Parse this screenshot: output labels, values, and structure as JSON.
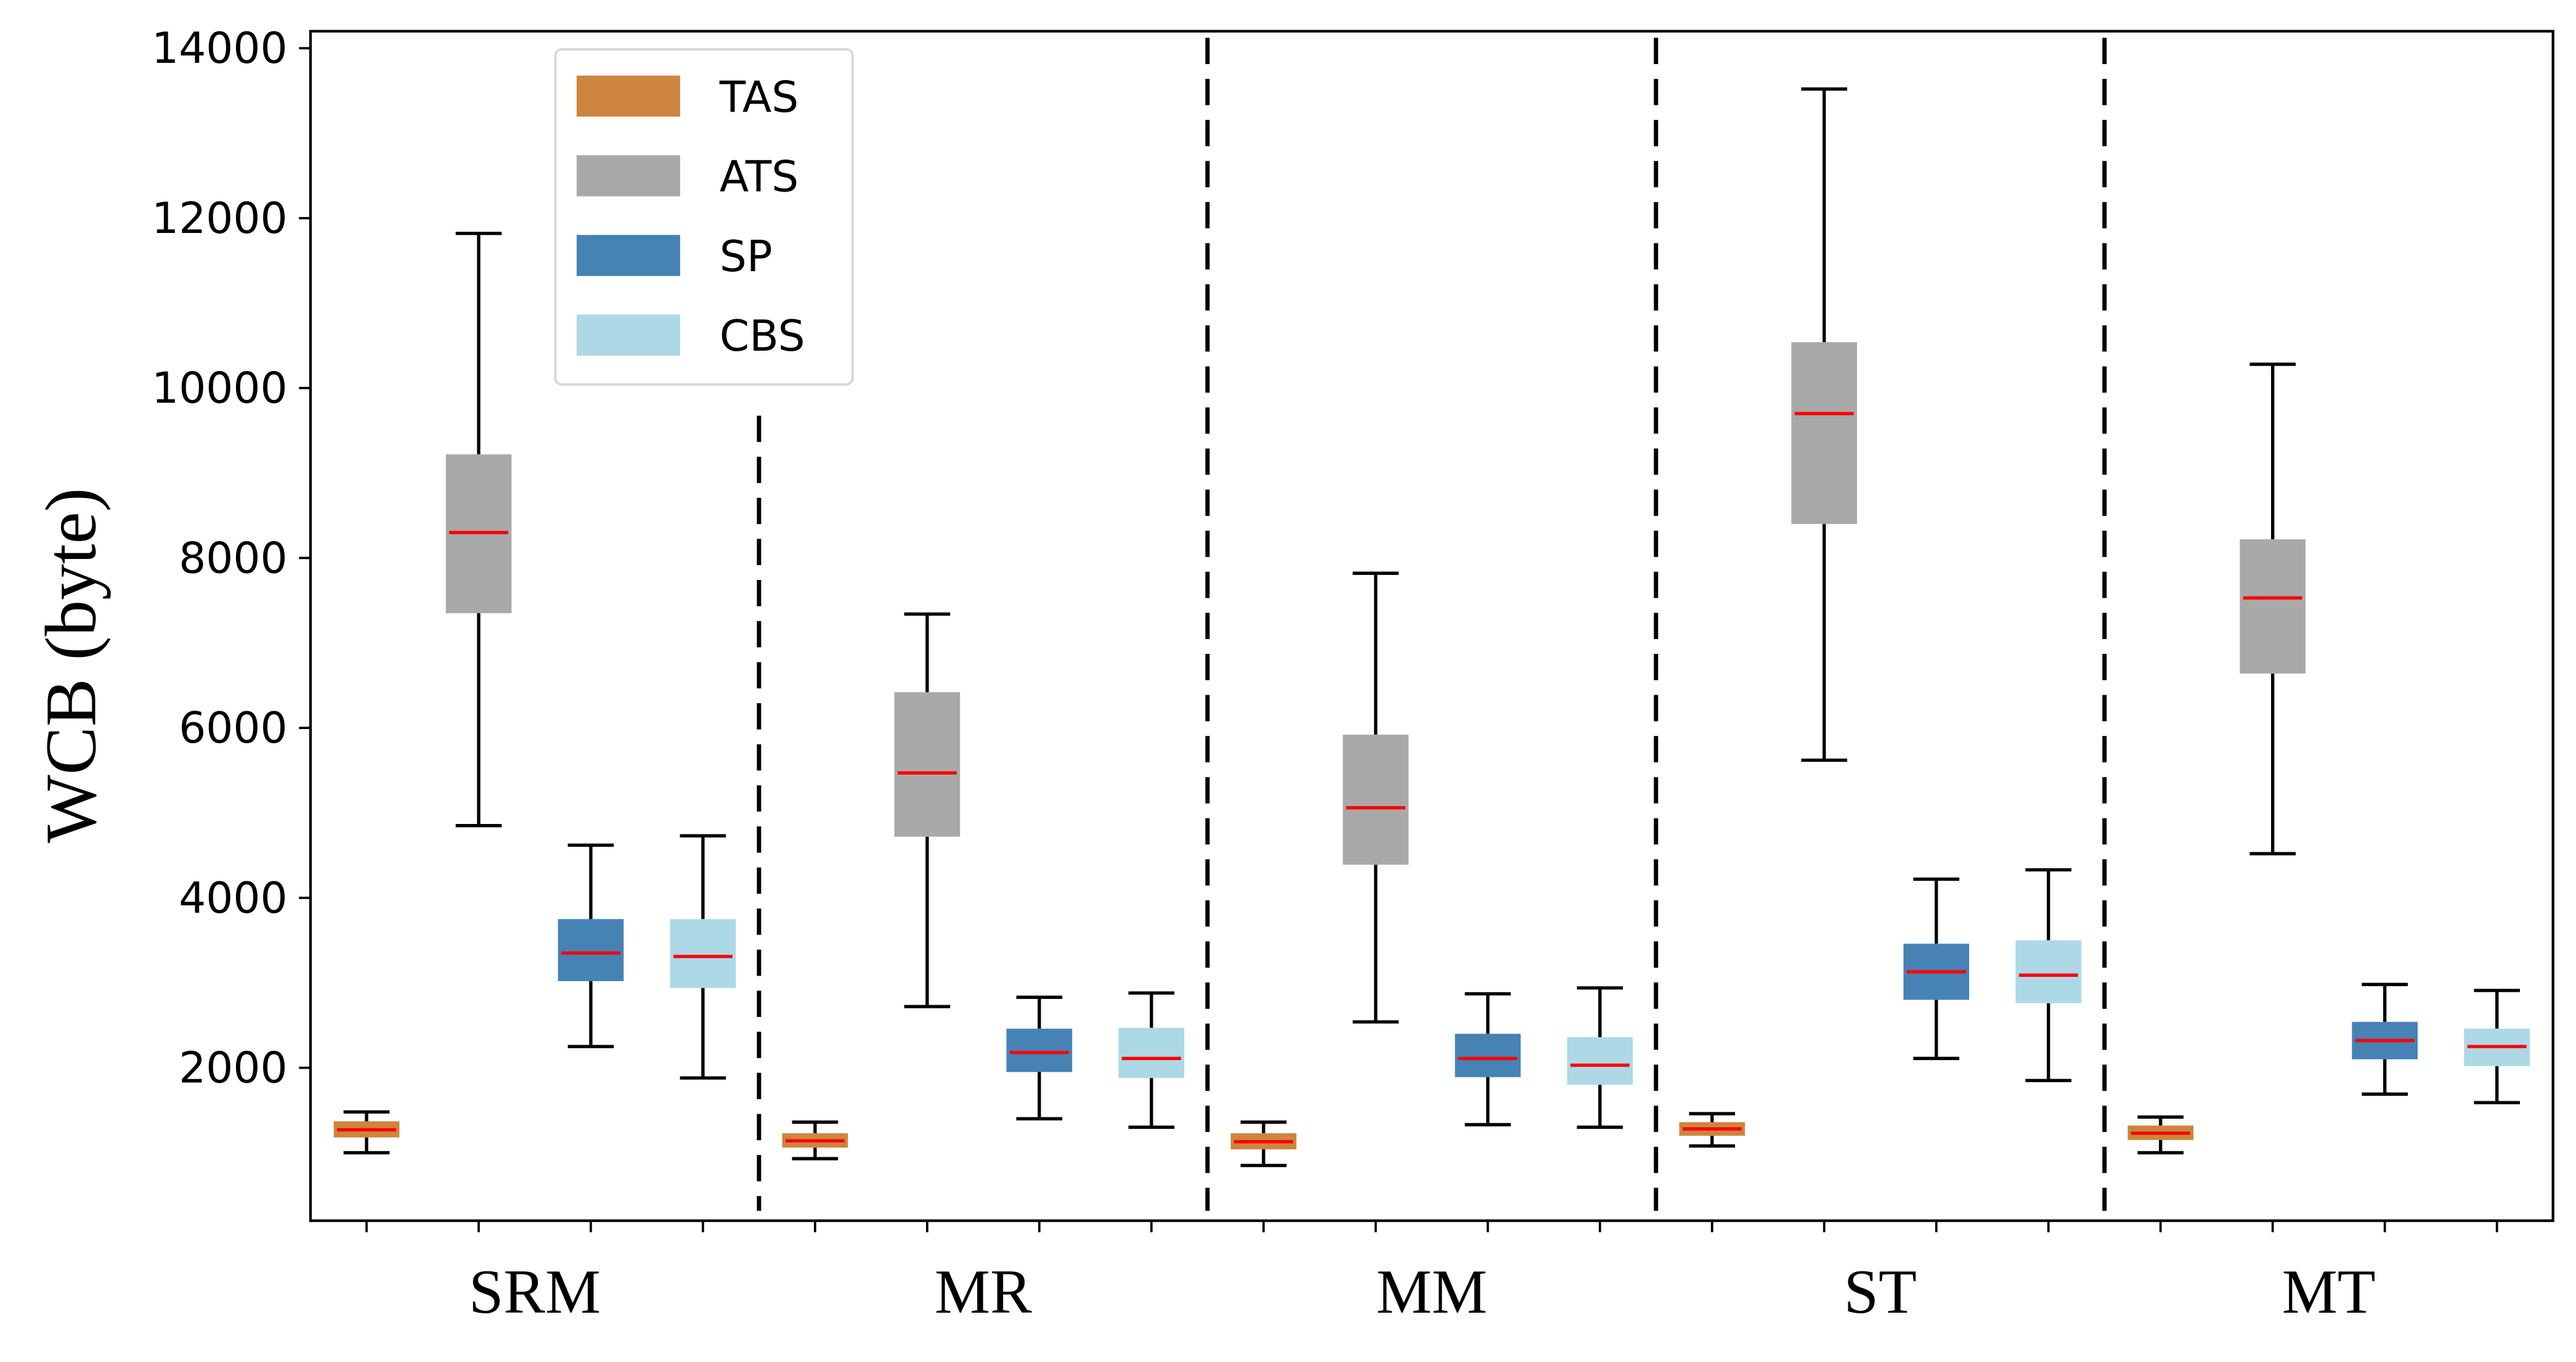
{
  "chart_data": {
    "type": "box",
    "title": "",
    "xlabel": "",
    "ylabel": "WCB (byte)",
    "ylim": [
      200,
      14200
    ],
    "yticks": [
      2000,
      4000,
      6000,
      8000,
      10000,
      12000,
      14000
    ],
    "ytick_labels": [
      "2000",
      "4000",
      "6000",
      "8000",
      "10000",
      "12000",
      "14000"
    ],
    "categories": [
      "SRM",
      "MR",
      "MM",
      "ST",
      "MT"
    ],
    "grid": false,
    "group_separators": "dashed vertical lines between categories",
    "legend": {
      "position": "top-left",
      "entries": [
        {
          "name": "TAS",
          "color": "#cd853f"
        },
        {
          "name": "ATS",
          "color": "#a9a9a9"
        },
        {
          "name": "SP",
          "color": "#4682b4"
        },
        {
          "name": "CBS",
          "color": "#add8e6"
        }
      ]
    },
    "median_color": "#ff0000",
    "series": [
      {
        "name": "TAS",
        "color": "#cd853f",
        "boxes": [
          {
            "category": "SRM",
            "whislo": 1000,
            "q1": 1180,
            "med": 1270,
            "q3": 1370,
            "whishi": 1480
          },
          {
            "category": "MR",
            "whislo": 930,
            "q1": 1060,
            "med": 1140,
            "q3": 1230,
            "whishi": 1360
          },
          {
            "category": "MM",
            "whislo": 850,
            "q1": 1040,
            "med": 1130,
            "q3": 1230,
            "whishi": 1360
          },
          {
            "category": "ST",
            "whislo": 1080,
            "q1": 1200,
            "med": 1280,
            "q3": 1360,
            "whishi": 1460
          },
          {
            "category": "MT",
            "whislo": 1000,
            "q1": 1150,
            "med": 1230,
            "q3": 1320,
            "whishi": 1420
          }
        ]
      },
      {
        "name": "ATS",
        "color": "#a9a9a9",
        "boxes": [
          {
            "category": "SRM",
            "whislo": 4850,
            "q1": 7350,
            "med": 8300,
            "q3": 9220,
            "whishi": 11820
          },
          {
            "category": "MR",
            "whislo": 2720,
            "q1": 4720,
            "med": 5470,
            "q3": 6420,
            "whishi": 7340
          },
          {
            "category": "MM",
            "whislo": 2540,
            "q1": 4390,
            "med": 5060,
            "q3": 5920,
            "whishi": 7820
          },
          {
            "category": "ST",
            "whislo": 5620,
            "q1": 8400,
            "med": 9700,
            "q3": 10540,
            "whishi": 13520
          },
          {
            "category": "MT",
            "whislo": 4520,
            "q1": 6640,
            "med": 7530,
            "q3": 8220,
            "whishi": 10280
          }
        ]
      },
      {
        "name": "SP",
        "color": "#4682b4",
        "boxes": [
          {
            "category": "SRM",
            "whislo": 2250,
            "q1": 3020,
            "med": 3350,
            "q3": 3750,
            "whishi": 4620
          },
          {
            "category": "MR",
            "whislo": 1400,
            "q1": 1950,
            "med": 2180,
            "q3": 2460,
            "whishi": 2830
          },
          {
            "category": "MM",
            "whislo": 1330,
            "q1": 1890,
            "med": 2110,
            "q3": 2400,
            "whishi": 2870
          },
          {
            "category": "ST",
            "whislo": 2110,
            "q1": 2800,
            "med": 3130,
            "q3": 3460,
            "whishi": 4220
          },
          {
            "category": "MT",
            "whislo": 1690,
            "q1": 2100,
            "med": 2320,
            "q3": 2540,
            "whishi": 2980
          }
        ]
      },
      {
        "name": "CBS",
        "color": "#add8e6",
        "boxes": [
          {
            "category": "SRM",
            "whislo": 1880,
            "q1": 2940,
            "med": 3310,
            "q3": 3750,
            "whishi": 4730
          },
          {
            "category": "MR",
            "whislo": 1300,
            "q1": 1880,
            "med": 2110,
            "q3": 2470,
            "whishi": 2880
          },
          {
            "category": "MM",
            "whislo": 1300,
            "q1": 1800,
            "med": 2030,
            "q3": 2360,
            "whishi": 2940
          },
          {
            "category": "ST",
            "whislo": 1850,
            "q1": 2760,
            "med": 3090,
            "q3": 3500,
            "whishi": 4330
          },
          {
            "category": "MT",
            "whislo": 1590,
            "q1": 2020,
            "med": 2250,
            "q3": 2460,
            "whishi": 2910
          }
        ]
      }
    ]
  }
}
